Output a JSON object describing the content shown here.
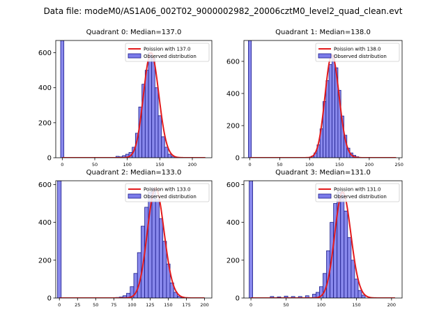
{
  "figure_title": "Data file: modeM0/AS1A06_002T02_9000002982_20006cztM0_level2_quad_clean.evt",
  "colors": {
    "bar_fill": "#7b7bea",
    "bar_edge": "#1d1d8a",
    "poisson_line": "#e31a1c"
  },
  "chart_data": [
    {
      "type": "bar",
      "title": "Quadrant 0: Median=137.0",
      "legend": {
        "line": "Poission with 137.0",
        "bars": "Observed distribution",
        "placement": "upper-right"
      },
      "xlim": [
        -10,
        230
      ],
      "ylim": [
        0,
        670
      ],
      "xticks": [
        0,
        50,
        100,
        150,
        200
      ],
      "yticks": [
        0,
        200,
        400,
        600
      ],
      "bins": {
        "x": [
          0,
          85,
          90,
          95,
          100,
          105,
          110,
          115,
          120,
          125,
          130,
          135,
          140,
          145,
          150,
          155,
          160,
          165,
          170
        ],
        "width": 5,
        "counts": [
          670,
          8,
          5,
          12,
          20,
          30,
          60,
          140,
          290,
          420,
          500,
          600,
          570,
          400,
          240,
          120,
          60,
          20,
          8
        ]
      },
      "poisson": {
        "lambda": 137.0,
        "scale": 600,
        "x_range": [
          0,
          220
        ]
      }
    },
    {
      "type": "bar",
      "title": "Quadrant 1: Median=138.0",
      "legend": {
        "line": "Poission with 138.0",
        "bars": "Observed distribution",
        "placement": "upper-right"
      },
      "xlim": [
        -10,
        255
      ],
      "ylim": [
        0,
        730
      ],
      "xticks": [
        0,
        50,
        100,
        150,
        200,
        250
      ],
      "yticks": [
        0,
        200,
        400,
        600
      ],
      "bins": {
        "x": [
          0,
          105,
          110,
          115,
          120,
          125,
          130,
          135,
          140,
          145,
          150,
          155,
          160,
          165,
          170,
          175,
          180
        ],
        "width": 5,
        "counts": [
          730,
          10,
          30,
          80,
          180,
          350,
          480,
          580,
          640,
          560,
          420,
          260,
          140,
          60,
          30,
          15,
          6
        ]
      },
      "poisson": {
        "lambda": 138.0,
        "scale": 640,
        "x_range": [
          0,
          245
        ]
      }
    },
    {
      "type": "bar",
      "title": "Quadrant 2: Median=133.0",
      "legend": {
        "line": "Poission with 133.0",
        "bars": "Observed distribution",
        "placement": "upper-right"
      },
      "xlim": [
        -5,
        210
      ],
      "ylim": [
        0,
        620
      ],
      "xticks": [
        0,
        25,
        50,
        75,
        100,
        125,
        150,
        175,
        200
      ],
      "yticks": [
        0,
        200,
        400,
        600
      ],
      "bins": {
        "x": [
          0,
          80,
          85,
          90,
          95,
          100,
          105,
          110,
          115,
          120,
          125,
          130,
          135,
          140,
          145,
          150,
          155,
          160,
          165,
          170
        ],
        "width": 5,
        "counts": [
          620,
          3,
          5,
          12,
          25,
          60,
          130,
          240,
          380,
          480,
          560,
          580,
          520,
          420,
          300,
          180,
          80,
          30,
          10,
          4
        ]
      },
      "poisson": {
        "lambda": 133.0,
        "scale": 580,
        "x_range": [
          0,
          200
        ]
      }
    },
    {
      "type": "bar",
      "title": "Quadrant 3: Median=131.0",
      "legend": {
        "line": "Poission with 131.0",
        "bars": "Observed distribution",
        "placement": "upper-right"
      },
      "xlim": [
        -10,
        215
      ],
      "ylim": [
        0,
        620
      ],
      "xticks": [
        0,
        50,
        100,
        150,
        200
      ],
      "yticks": [
        0,
        200,
        400,
        600
      ],
      "bins": {
        "x": [
          0,
          30,
          40,
          50,
          60,
          70,
          80,
          90,
          95,
          100,
          105,
          110,
          115,
          120,
          125,
          130,
          135,
          140,
          145,
          150,
          155,
          160
        ],
        "width": 5,
        "counts": [
          620,
          8,
          6,
          10,
          8,
          8,
          12,
          20,
          30,
          60,
          130,
          250,
          400,
          500,
          560,
          560,
          460,
          320,
          200,
          100,
          40,
          15
        ]
      },
      "poisson": {
        "lambda": 131.0,
        "scale": 560,
        "x_range": [
          0,
          205
        ]
      }
    }
  ]
}
